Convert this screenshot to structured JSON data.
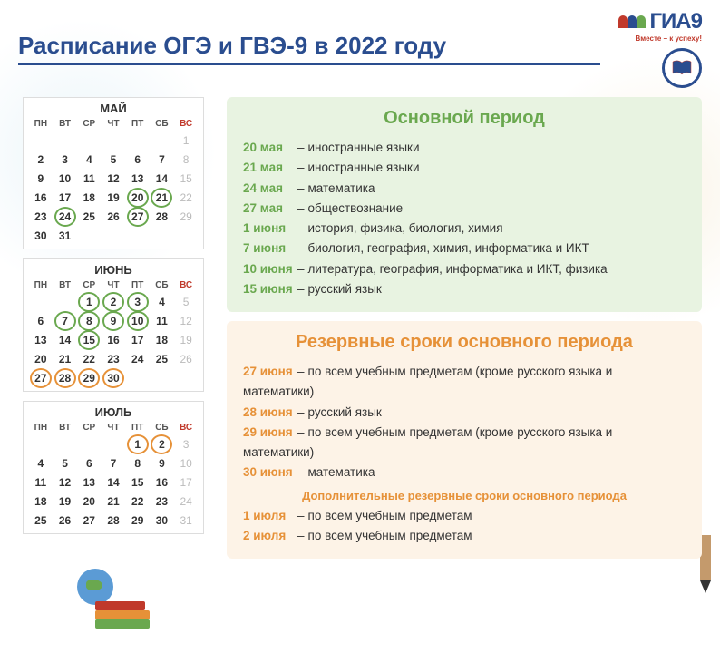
{
  "title": "Расписание ОГЭ и ГВЭ-9 в 2022 году",
  "logo": {
    "text": "ГИА9",
    "sub": "Вместе – к успеху!"
  },
  "calendars": [
    {
      "name": "МАЙ",
      "heads": [
        "ПН",
        "ВТ",
        "СР",
        "ЧТ",
        "ПТ",
        "СБ",
        "ВС"
      ],
      "cells": [
        {
          "n": "",
          "c": ""
        },
        {
          "n": "",
          "c": ""
        },
        {
          "n": "",
          "c": ""
        },
        {
          "n": "",
          "c": ""
        },
        {
          "n": "",
          "c": ""
        },
        {
          "n": "",
          "c": ""
        },
        {
          "n": "1",
          "c": "dim"
        },
        {
          "n": "2",
          "c": ""
        },
        {
          "n": "3",
          "c": ""
        },
        {
          "n": "4",
          "c": ""
        },
        {
          "n": "5",
          "c": ""
        },
        {
          "n": "6",
          "c": ""
        },
        {
          "n": "7",
          "c": ""
        },
        {
          "n": "8",
          "c": "dim"
        },
        {
          "n": "9",
          "c": ""
        },
        {
          "n": "10",
          "c": ""
        },
        {
          "n": "11",
          "c": ""
        },
        {
          "n": "12",
          "c": ""
        },
        {
          "n": "13",
          "c": ""
        },
        {
          "n": "14",
          "c": ""
        },
        {
          "n": "15",
          "c": "dim"
        },
        {
          "n": "16",
          "c": ""
        },
        {
          "n": "17",
          "c": ""
        },
        {
          "n": "18",
          "c": ""
        },
        {
          "n": "19",
          "c": ""
        },
        {
          "n": "20",
          "c": "g"
        },
        {
          "n": "21",
          "c": "g"
        },
        {
          "n": "22",
          "c": "dim"
        },
        {
          "n": "23",
          "c": ""
        },
        {
          "n": "24",
          "c": "g"
        },
        {
          "n": "25",
          "c": ""
        },
        {
          "n": "26",
          "c": ""
        },
        {
          "n": "27",
          "c": "g"
        },
        {
          "n": "28",
          "c": ""
        },
        {
          "n": "29",
          "c": "dim"
        },
        {
          "n": "30",
          "c": ""
        },
        {
          "n": "31",
          "c": ""
        },
        {
          "n": "",
          "c": ""
        },
        {
          "n": "",
          "c": ""
        },
        {
          "n": "",
          "c": ""
        },
        {
          "n": "",
          "c": ""
        },
        {
          "n": "",
          "c": ""
        }
      ]
    },
    {
      "name": "ИЮНЬ",
      "heads": [
        "ПН",
        "ВТ",
        "СР",
        "ЧТ",
        "ПТ",
        "СБ",
        "ВС"
      ],
      "cells": [
        {
          "n": "",
          "c": ""
        },
        {
          "n": "",
          "c": ""
        },
        {
          "n": "1",
          "c": "g"
        },
        {
          "n": "2",
          "c": "g"
        },
        {
          "n": "3",
          "c": "g"
        },
        {
          "n": "4",
          "c": ""
        },
        {
          "n": "5",
          "c": "dim"
        },
        {
          "n": "6",
          "c": ""
        },
        {
          "n": "7",
          "c": "g"
        },
        {
          "n": "8",
          "c": "g"
        },
        {
          "n": "9",
          "c": "g"
        },
        {
          "n": "10",
          "c": "g"
        },
        {
          "n": "11",
          "c": ""
        },
        {
          "n": "12",
          "c": "dim"
        },
        {
          "n": "13",
          "c": ""
        },
        {
          "n": "14",
          "c": ""
        },
        {
          "n": "15",
          "c": "g"
        },
        {
          "n": "16",
          "c": ""
        },
        {
          "n": "17",
          "c": ""
        },
        {
          "n": "18",
          "c": ""
        },
        {
          "n": "19",
          "c": "dim"
        },
        {
          "n": "20",
          "c": ""
        },
        {
          "n": "21",
          "c": ""
        },
        {
          "n": "22",
          "c": ""
        },
        {
          "n": "23",
          "c": ""
        },
        {
          "n": "24",
          "c": ""
        },
        {
          "n": "25",
          "c": ""
        },
        {
          "n": "26",
          "c": "dim"
        },
        {
          "n": "27",
          "c": "o"
        },
        {
          "n": "28",
          "c": "o"
        },
        {
          "n": "29",
          "c": "o"
        },
        {
          "n": "30",
          "c": "o"
        },
        {
          "n": "",
          "c": ""
        },
        {
          "n": "",
          "c": ""
        },
        {
          "n": "",
          "c": ""
        }
      ]
    },
    {
      "name": "ИЮЛЬ",
      "heads": [
        "ПН",
        "ВТ",
        "СР",
        "ЧТ",
        "ПТ",
        "СБ",
        "ВС"
      ],
      "cells": [
        {
          "n": "",
          "c": ""
        },
        {
          "n": "",
          "c": ""
        },
        {
          "n": "",
          "c": ""
        },
        {
          "n": "",
          "c": ""
        },
        {
          "n": "1",
          "c": "o"
        },
        {
          "n": "2",
          "c": "o"
        },
        {
          "n": "3",
          "c": "dim"
        },
        {
          "n": "4",
          "c": ""
        },
        {
          "n": "5",
          "c": ""
        },
        {
          "n": "6",
          "c": ""
        },
        {
          "n": "7",
          "c": ""
        },
        {
          "n": "8",
          "c": ""
        },
        {
          "n": "9",
          "c": ""
        },
        {
          "n": "10",
          "c": "dim"
        },
        {
          "n": "11",
          "c": ""
        },
        {
          "n": "12",
          "c": ""
        },
        {
          "n": "13",
          "c": ""
        },
        {
          "n": "14",
          "c": ""
        },
        {
          "n": "15",
          "c": ""
        },
        {
          "n": "16",
          "c": ""
        },
        {
          "n": "17",
          "c": "dim"
        },
        {
          "n": "18",
          "c": ""
        },
        {
          "n": "19",
          "c": ""
        },
        {
          "n": "20",
          "c": ""
        },
        {
          "n": "21",
          "c": ""
        },
        {
          "n": "22",
          "c": ""
        },
        {
          "n": "23",
          "c": ""
        },
        {
          "n": "24",
          "c": "dim"
        },
        {
          "n": "25",
          "c": ""
        },
        {
          "n": "26",
          "c": ""
        },
        {
          "n": "27",
          "c": ""
        },
        {
          "n": "28",
          "c": ""
        },
        {
          "n": "29",
          "c": ""
        },
        {
          "n": "30",
          "c": ""
        },
        {
          "n": "31",
          "c": "dim"
        }
      ]
    }
  ],
  "main_period": {
    "title": "Основной период",
    "rows": [
      {
        "date": "20 мая",
        "subj": "иностранные языки"
      },
      {
        "date": "21 мая",
        "subj": "иностранные языки"
      },
      {
        "date": "24 мая",
        "subj": "математика"
      },
      {
        "date": "27 мая",
        "subj": "обществознание"
      },
      {
        "date": "1 июня",
        "subj": "история, физика, биология, химия"
      },
      {
        "date": "7 июня",
        "subj": "биология, география, химия, информатика и ИКТ"
      },
      {
        "date": "10 июня",
        "subj": "литература, география, информатика и ИКТ, физика"
      },
      {
        "date": "15 июня",
        "subj": "русский язык"
      }
    ]
  },
  "reserve_period": {
    "title": "Резервные сроки основного периода",
    "rows": [
      {
        "date": "27 июня",
        "subj": "по всем учебным предметам (кроме русского языка и математики)"
      },
      {
        "date": "28 июня",
        "subj": "русский язык"
      },
      {
        "date": "29 июня",
        "subj": "по всем учебным предметам (кроме русского языка и математики)"
      },
      {
        "date": "30 июня",
        "subj": "математика"
      }
    ],
    "sub_title": "Дополнительные резервные сроки основного периода",
    "extra_rows": [
      {
        "date": "1 июля",
        "subj": "по всем учебным предметам"
      },
      {
        "date": "2 июля",
        "subj": "по всем учебным предметам"
      }
    ]
  },
  "colors": {
    "title_color": "#2a4d8f",
    "green": "#6aa84f",
    "orange": "#e69138",
    "panel_green_bg": "#e8f3e1",
    "panel_orange_bg": "#fdf3e7"
  }
}
